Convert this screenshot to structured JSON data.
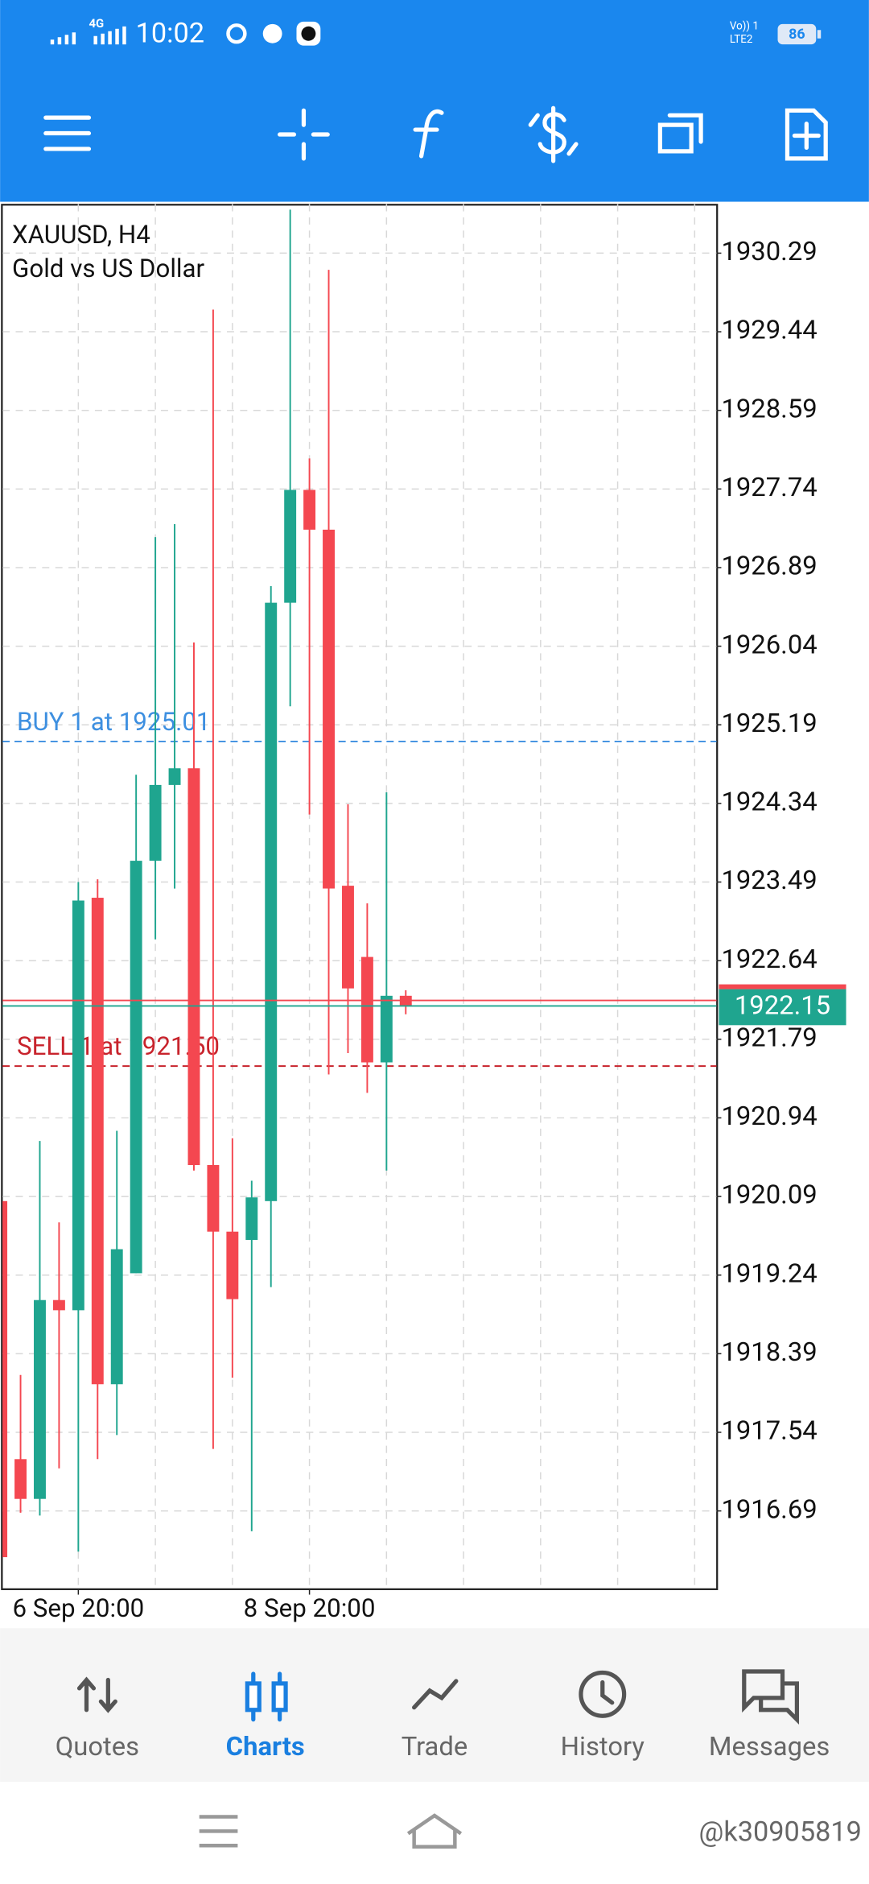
{
  "status_bar": {
    "network": "4G",
    "time": "10:02",
    "volte": "Vo)) 1",
    "lte": "LTE2",
    "battery": "86"
  },
  "chart_data": {
    "type": "candlestick",
    "symbol": "XAUUSD, H4",
    "description": "Gold vs US Dollar",
    "categories": [
      null,
      null,
      null,
      null,
      "6 Sep 20:00",
      null,
      null,
      null,
      null,
      null,
      null,
      null,
      null,
      null,
      null,
      null,
      "8 Sep 20:00",
      null,
      null,
      null,
      null,
      null
    ],
    "open": [
      1920.04,
      1917.25,
      1916.82,
      1918.97,
      1918.86,
      1923.32,
      1918.06,
      1919.26,
      1923.72,
      1924.54,
      1924.72,
      1920.43,
      1919.71,
      1919.62,
      1920.04,
      1926.51,
      1927.73,
      1927.3,
      1923.45,
      1922.68,
      1921.54,
      1922.26
    ],
    "high": [
      1920.04,
      1918.16,
      1920.69,
      1919.81,
      1923.49,
      1923.52,
      1920.8,
      1924.65,
      1927.22,
      1927.36,
      1926.08,
      1929.68,
      1920.72,
      1920.26,
      1926.69,
      1930.76,
      1928.07,
      1930.11,
      1924.33,
      1923.26,
      1924.46,
      1922.32
    ],
    "low": [
      1916.19,
      1916.67,
      1916.64,
      1917.15,
      1916.25,
      1917.25,
      1917.51,
      1919.26,
      1922.87,
      1923.42,
      1920.37,
      1917.36,
      1918.13,
      1916.47,
      1919.11,
      1925.39,
      1924.22,
      1921.41,
      1921.64,
      1921.21,
      1920.37,
      1922.06
    ],
    "close": [
      1916.19,
      1916.82,
      1918.97,
      1918.86,
      1923.29,
      1918.06,
      1919.52,
      1923.72,
      1924.54,
      1924.72,
      1920.43,
      1919.71,
      1918.98,
      1920.08,
      1926.51,
      1927.73,
      1927.3,
      1923.42,
      1922.34,
      1921.54,
      1922.26,
      1922.15
    ],
    "up_color": "#1fa58f",
    "down_color": "#f44750",
    "ylim": [
      1915.85,
      1930.82
    ],
    "yticks": [
      1930.29,
      1929.44,
      1928.59,
      1927.74,
      1926.89,
      1926.04,
      1925.19,
      1924.34,
      1923.49,
      1922.64,
      1921.79,
      1920.94,
      1920.09,
      1919.24,
      1918.39,
      1917.54,
      1916.69
    ],
    "grid": true,
    "bid": {
      "value": 1922.15,
      "color": "#1fa58f"
    },
    "ask": {
      "value": 1922.21,
      "color": "#f44750"
    },
    "orders": [
      {
        "label": "BUY 1 at 1925.01",
        "value": 1925.01,
        "color": "#3d8fe0"
      },
      {
        "label": "SELL 1 at 1921.50",
        "value": 1921.5,
        "color": "#c8232c"
      }
    ]
  },
  "bottom_nav": {
    "items": [
      "Quotes",
      "Charts",
      "Trade",
      "History",
      "Messages"
    ],
    "selected": 1
  },
  "watermark": "@k30905819"
}
